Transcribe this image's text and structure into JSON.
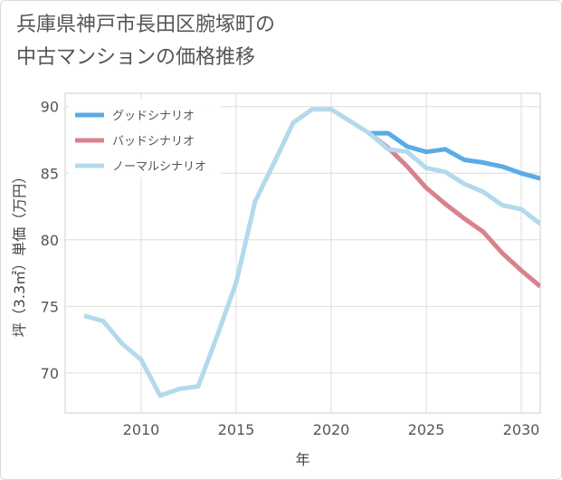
{
  "chart_data": {
    "type": "line",
    "title": "兵庫県神戸市長田区腕塚町の\n中古マンションの価格推移",
    "xlabel": "年",
    "ylabel": "坪（3.3㎡）単価（万円）",
    "xlim": [
      2006,
      2031
    ],
    "ylim": [
      67,
      91
    ],
    "xticks": [
      2010,
      2015,
      2020,
      2025,
      2030
    ],
    "yticks": [
      70,
      75,
      80,
      85,
      90
    ],
    "grid": true,
    "legend_position": "top-left",
    "series": [
      {
        "name": "グッドシナリオ",
        "color": "#5aabe6",
        "x": [
          2022,
          2023,
          2024,
          2025,
          2026,
          2027,
          2028,
          2029,
          2030,
          2031
        ],
        "y": [
          88.0,
          88.0,
          87.0,
          86.6,
          86.8,
          86.0,
          85.8,
          85.5,
          85.0,
          84.6
        ]
      },
      {
        "name": "バッドシナリオ",
        "color": "#d9818d",
        "x": [
          2022,
          2023,
          2024,
          2025,
          2026,
          2027,
          2028,
          2029,
          2030,
          2031
        ],
        "y": [
          88.0,
          86.9,
          85.5,
          83.9,
          82.7,
          81.6,
          80.6,
          79.0,
          77.7,
          76.5
        ]
      },
      {
        "name": "ノーマルシナリオ",
        "color": "#b3d9ec",
        "x": [
          2007,
          2008,
          2009,
          2010,
          2011,
          2012,
          2013,
          2014,
          2015,
          2016,
          2017,
          2018,
          2019,
          2020,
          2021,
          2022,
          2023,
          2024,
          2025,
          2026,
          2027,
          2028,
          2029,
          2030,
          2031
        ],
        "y": [
          74.3,
          73.9,
          72.2,
          71.0,
          68.3,
          68.8,
          69.0,
          72.8,
          76.8,
          82.9,
          85.8,
          88.8,
          89.8,
          89.8,
          88.9,
          88.0,
          86.8,
          86.6,
          85.4,
          85.1,
          84.2,
          83.6,
          82.6,
          82.3,
          81.2
        ]
      }
    ]
  }
}
